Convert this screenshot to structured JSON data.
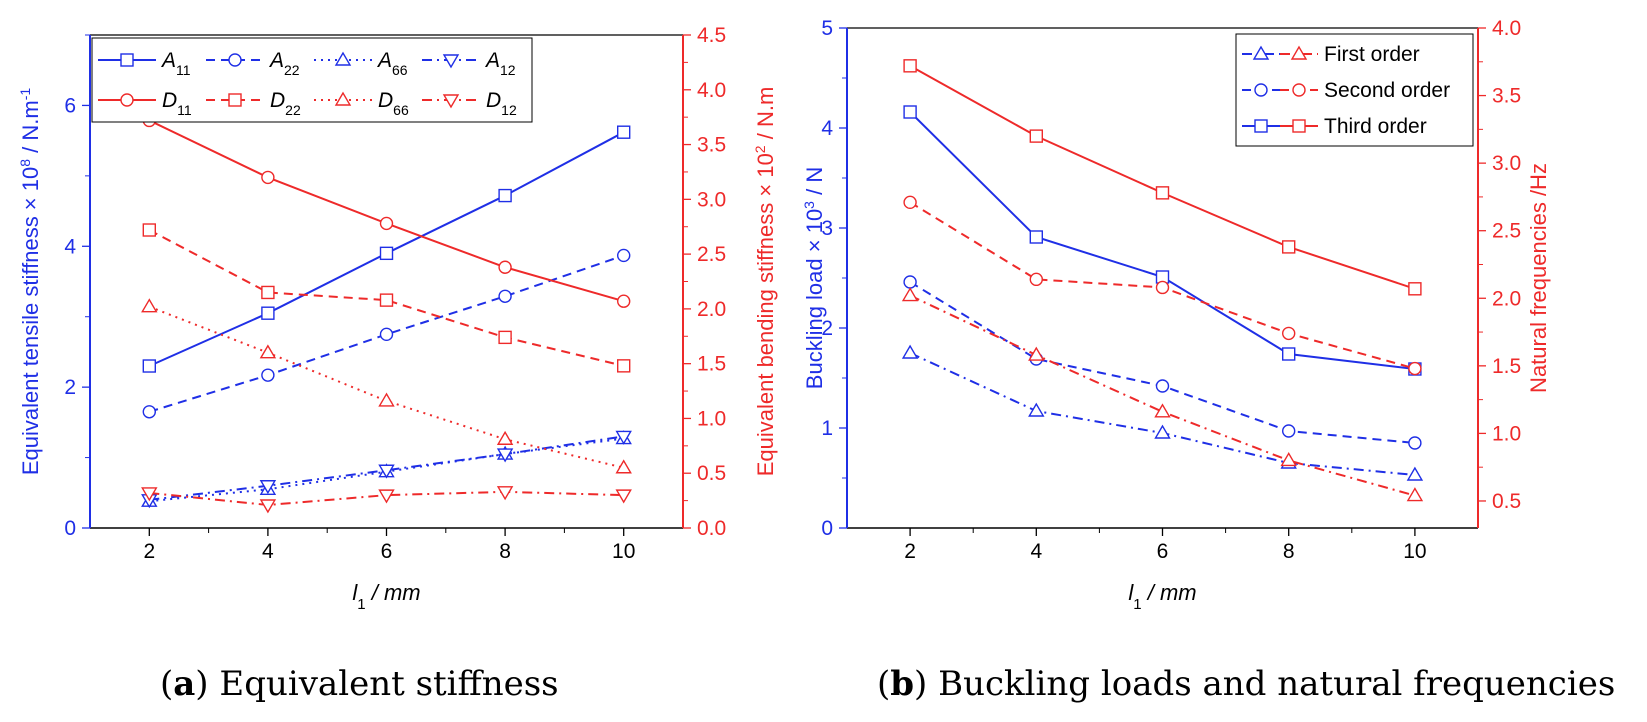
{
  "colors": {
    "blue": "#1f2fe6",
    "red": "#ee2a2a",
    "axis": "#000000"
  },
  "chart_data": [
    {
      "id": "a",
      "type": "line",
      "caption": {
        "letter": "a",
        "text": ") Equivalent stiffness"
      },
      "x": [
        2,
        4,
        6,
        8,
        10
      ],
      "xlim": [
        1,
        11
      ],
      "xticks": [
        2,
        4,
        6,
        8,
        10
      ],
      "xlabel": {
        "var": "l",
        "sub": "1",
        "rest": " / mm"
      },
      "left_axis": {
        "label": "Equivalent tensile stiffness × 10",
        "label_sup": "8",
        "label_unit": " / N.m",
        "label_unit_sup": "-1",
        "ylim": [
          0,
          7
        ],
        "ticks": [
          0,
          2,
          4,
          6
        ],
        "color": "#1f2fe6"
      },
      "right_axis": {
        "label": "Equivalent bending stiffness × 10",
        "label_sup": "2",
        "label_unit": " / N.m",
        "label_unit_sup": "",
        "ylim": [
          0,
          4.5
        ],
        "ticks": [
          "0.0",
          "0.5",
          "1.0",
          "1.5",
          "2.0",
          "2.5",
          "3.0",
          "3.5",
          "4.0",
          "4.5"
        ],
        "color": "#ee2a2a"
      },
      "legend_position": "top",
      "series": [
        {
          "name": "A",
          "sub": "11",
          "axis": "left",
          "color": "#1f2fe6",
          "dash": "solid",
          "marker": "square",
          "values": [
            2.3,
            3.05,
            3.9,
            4.72,
            5.62
          ]
        },
        {
          "name": "A",
          "sub": "22",
          "axis": "left",
          "color": "#1f2fe6",
          "dash": "dash",
          "marker": "circle",
          "values": [
            1.65,
            2.17,
            2.75,
            3.29,
            3.87
          ]
        },
        {
          "name": "A",
          "sub": "66",
          "axis": "left",
          "color": "#1f2fe6",
          "dash": "dot",
          "marker": "triangle-up",
          "values": [
            0.38,
            0.55,
            0.8,
            1.05,
            1.27
          ]
        },
        {
          "name": "A",
          "sub": "12",
          "axis": "left",
          "color": "#1f2fe6",
          "dash": "dashdot",
          "marker": "triangle-down",
          "values": [
            0.4,
            0.6,
            0.82,
            1.05,
            1.3
          ]
        },
        {
          "name": "D",
          "sub": "11",
          "axis": "right",
          "color": "#ee2a2a",
          "dash": "solid",
          "marker": "circle",
          "values": [
            3.72,
            3.2,
            2.78,
            2.38,
            2.07
          ]
        },
        {
          "name": "D",
          "sub": "22",
          "axis": "right",
          "color": "#ee2a2a",
          "dash": "dash",
          "marker": "square",
          "values": [
            2.72,
            2.15,
            2.08,
            1.74,
            1.48
          ]
        },
        {
          "name": "D",
          "sub": "66",
          "axis": "right",
          "color": "#ee2a2a",
          "dash": "dot",
          "marker": "triangle-up",
          "values": [
            2.02,
            1.6,
            1.16,
            0.81,
            0.55
          ]
        },
        {
          "name": "D",
          "sub": "12",
          "axis": "right",
          "color": "#ee2a2a",
          "dash": "dashdot",
          "marker": "triangle-down",
          "values": [
            0.32,
            0.21,
            0.3,
            0.33,
            0.3
          ]
        }
      ]
    },
    {
      "id": "b",
      "type": "line",
      "caption": {
        "letter": "b",
        "text": ") Buckling loads and natural frequencies"
      },
      "x": [
        2,
        4,
        6,
        8,
        10
      ],
      "xlim": [
        1,
        11
      ],
      "xticks": [
        2,
        4,
        6,
        8,
        10
      ],
      "xlabel": {
        "var": "l",
        "sub": "1",
        "rest": " / mm"
      },
      "left_axis": {
        "label": "Buckling load × 10",
        "label_sup": "3",
        "label_unit": " / N",
        "label_unit_sup": "",
        "ylim": [
          0,
          5
        ],
        "ticks": [
          0,
          1,
          2,
          3,
          4,
          5
        ],
        "color": "#1f2fe6"
      },
      "right_axis": {
        "label": "Natural frequencies /Hz",
        "label_sup": "",
        "label_unit": "",
        "label_unit_sup": "",
        "ylim": [
          0.3,
          4.0
        ],
        "ticks": [
          "0.5",
          "1.0",
          "1.5",
          "2.0",
          "2.5",
          "3.0",
          "3.5",
          "4.0"
        ],
        "color": "#ee2a2a"
      },
      "legend_position": "top-right",
      "legend_entries": [
        "First order",
        "Second order",
        "Third order"
      ],
      "series": [
        {
          "name": "First order",
          "axis": "left",
          "color": "#1f2fe6",
          "dash": "dashdot",
          "marker": "triangle-up",
          "values": [
            1.75,
            1.17,
            0.95,
            0.65,
            0.53
          ]
        },
        {
          "name": "Second order",
          "axis": "left",
          "color": "#1f2fe6",
          "dash": "dash",
          "marker": "circle",
          "values": [
            2.46,
            1.69,
            1.42,
            0.97,
            0.85
          ]
        },
        {
          "name": "Third order",
          "axis": "left",
          "color": "#1f2fe6",
          "dash": "solid",
          "marker": "square",
          "values": [
            4.16,
            2.91,
            2.51,
            1.74,
            1.59
          ]
        },
        {
          "name": "First order",
          "axis": "right",
          "color": "#ee2a2a",
          "dash": "dashdot",
          "marker": "triangle-up",
          "values": [
            2.02,
            1.58,
            1.16,
            0.8,
            0.54
          ]
        },
        {
          "name": "Second order",
          "axis": "right",
          "color": "#ee2a2a",
          "dash": "dash",
          "marker": "circle",
          "values": [
            2.71,
            2.14,
            2.08,
            1.74,
            1.48
          ]
        },
        {
          "name": "Third order",
          "axis": "right",
          "color": "#ee2a2a",
          "dash": "solid",
          "marker": "square",
          "values": [
            3.72,
            3.2,
            2.78,
            2.38,
            2.07
          ]
        }
      ]
    }
  ]
}
